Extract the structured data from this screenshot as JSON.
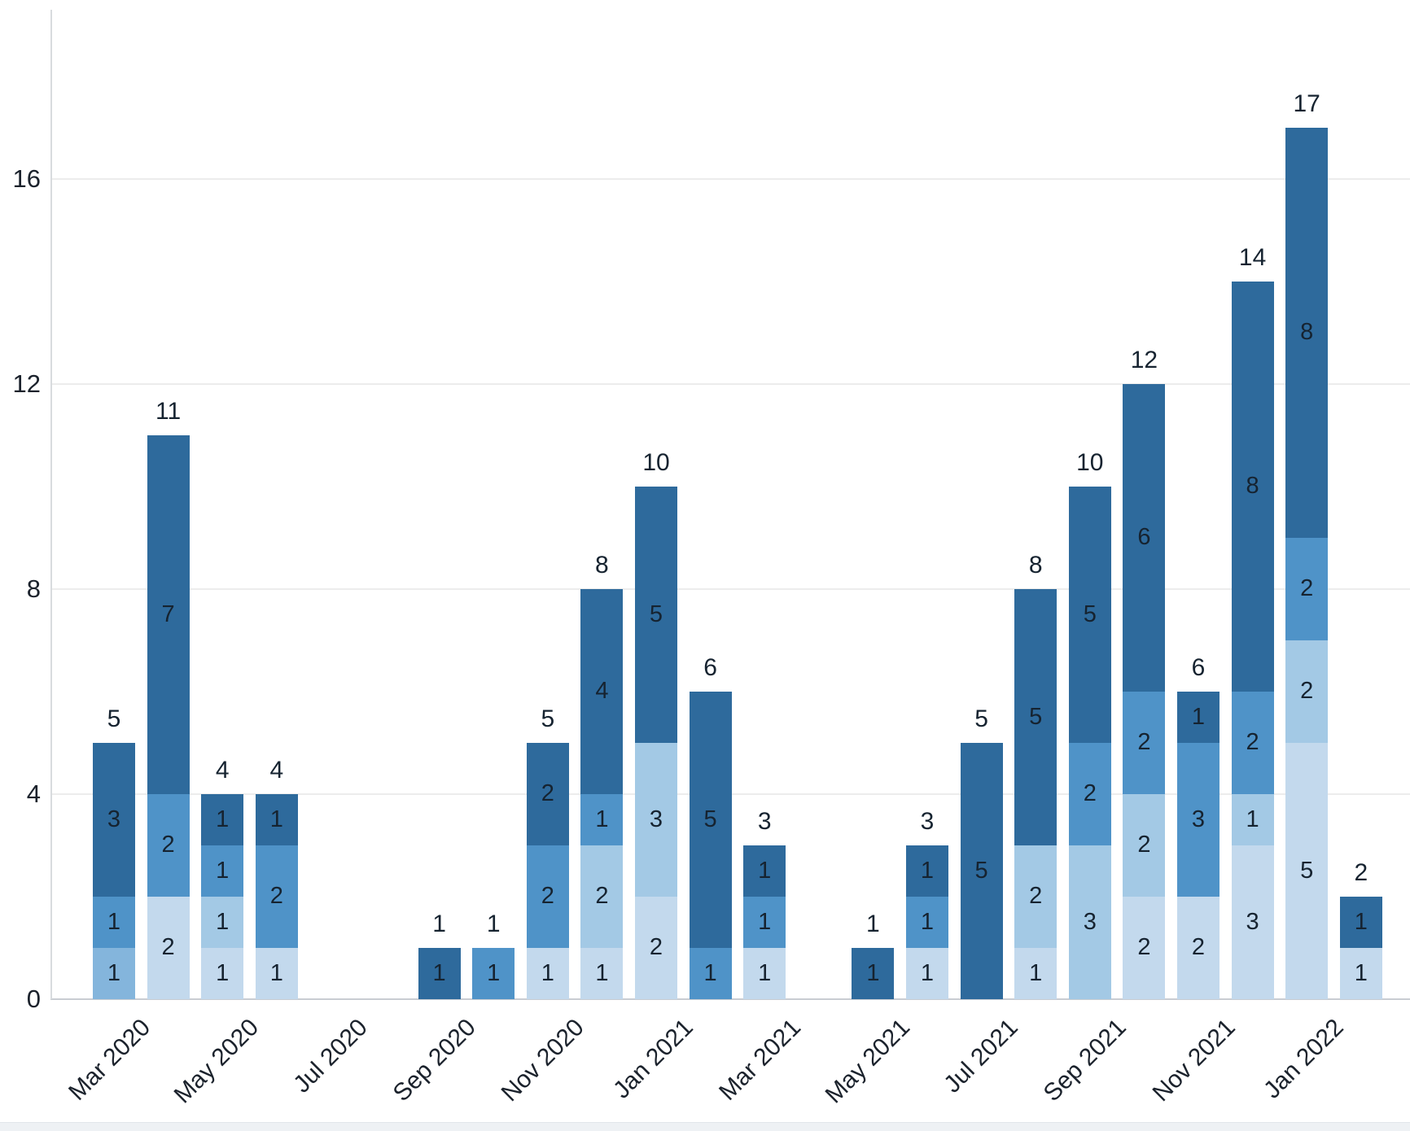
{
  "chart_data": {
    "type": "stacked_bar",
    "title": "",
    "xlabel": "",
    "ylabel": "",
    "grid": "horizontal",
    "legend": "none",
    "y_axis": {
      "ticks": [
        0,
        4,
        8,
        12,
        16
      ],
      "ylim": [
        0,
        19
      ]
    },
    "x_axis": {
      "tick_labels": [
        "Mar 2020",
        "May 2020",
        "Jul 2020",
        "Sep 2020",
        "Nov 2020",
        "Jan 2021",
        "Mar 2021",
        "May 2021",
        "Jul 2021",
        "Sep 2021",
        "Nov 2021",
        "Jan 2022"
      ],
      "tick_slots": [
        0,
        2,
        4,
        6,
        8,
        10,
        12,
        14,
        16,
        18,
        20,
        22
      ]
    },
    "palette": {
      "s1": "#c3d9ed",
      "s2": "#a3c9e5",
      "s3": "#84b5dc",
      "s4": "#4f93c8",
      "s5": "#2e6a9c"
    },
    "bars": [
      {
        "month": "Mar 2020",
        "slot": 0,
        "total": 5,
        "segments": [
          {
            "value": 1,
            "shade": "s3"
          },
          {
            "value": 1,
            "shade": "s4"
          },
          {
            "value": 3,
            "shade": "s5"
          }
        ]
      },
      {
        "month": "Apr 2020",
        "slot": 1,
        "total": 11,
        "segments": [
          {
            "value": 2,
            "shade": "s1"
          },
          {
            "value": 2,
            "shade": "s4"
          },
          {
            "value": 7,
            "shade": "s5"
          }
        ]
      },
      {
        "month": "May 2020",
        "slot": 2,
        "total": 4,
        "segments": [
          {
            "value": 1,
            "shade": "s1"
          },
          {
            "value": 1,
            "shade": "s2"
          },
          {
            "value": 1,
            "shade": "s4"
          },
          {
            "value": 1,
            "shade": "s5"
          }
        ]
      },
      {
        "month": "Jun 2020",
        "slot": 3,
        "total": 4,
        "segments": [
          {
            "value": 1,
            "shade": "s1"
          },
          {
            "value": 2,
            "shade": "s4"
          },
          {
            "value": 1,
            "shade": "s5"
          }
        ]
      },
      {
        "month": "Sep 2020",
        "slot": 6,
        "total": 1,
        "segments": [
          {
            "value": 1,
            "shade": "s5"
          }
        ]
      },
      {
        "month": "Oct 2020",
        "slot": 7,
        "total": 1,
        "segments": [
          {
            "value": 1,
            "shade": "s4"
          }
        ]
      },
      {
        "month": "Nov 2020",
        "slot": 8,
        "total": 5,
        "segments": [
          {
            "value": 1,
            "shade": "s1"
          },
          {
            "value": 2,
            "shade": "s4"
          },
          {
            "value": 2,
            "shade": "s5"
          }
        ]
      },
      {
        "month": "Dec 2020",
        "slot": 9,
        "total": 8,
        "segments": [
          {
            "value": 1,
            "shade": "s1"
          },
          {
            "value": 2,
            "shade": "s2"
          },
          {
            "value": 1,
            "shade": "s4"
          },
          {
            "value": 4,
            "shade": "s5"
          }
        ]
      },
      {
        "month": "Jan 2021",
        "slot": 10,
        "total": 10,
        "segments": [
          {
            "value": 2,
            "shade": "s1"
          },
          {
            "value": 3,
            "shade": "s2"
          },
          {
            "value": 5,
            "shade": "s5"
          }
        ]
      },
      {
        "month": "Feb 2021",
        "slot": 11,
        "total": 6,
        "segments": [
          {
            "value": 1,
            "shade": "s4"
          },
          {
            "value": 5,
            "shade": "s5"
          }
        ]
      },
      {
        "month": "Mar 2021",
        "slot": 12,
        "total": 3,
        "segments": [
          {
            "value": 1,
            "shade": "s1"
          },
          {
            "value": 1,
            "shade": "s4"
          },
          {
            "value": 1,
            "shade": "s5"
          }
        ]
      },
      {
        "month": "May 2021",
        "slot": 14,
        "total": 1,
        "segments": [
          {
            "value": 1,
            "shade": "s5"
          }
        ]
      },
      {
        "month": "Jun 2021",
        "slot": 15,
        "total": 3,
        "segments": [
          {
            "value": 1,
            "shade": "s1"
          },
          {
            "value": 1,
            "shade": "s4"
          },
          {
            "value": 1,
            "shade": "s5"
          }
        ]
      },
      {
        "month": "Jul 2021",
        "slot": 16,
        "total": 5,
        "segments": [
          {
            "value": 5,
            "shade": "s5"
          }
        ]
      },
      {
        "month": "Aug 2021",
        "slot": 17,
        "total": 8,
        "segments": [
          {
            "value": 1,
            "shade": "s1"
          },
          {
            "value": 2,
            "shade": "s2"
          },
          {
            "value": 5,
            "shade": "s5"
          }
        ]
      },
      {
        "month": "Sep 2021",
        "slot": 18,
        "total": 10,
        "segments": [
          {
            "value": 3,
            "shade": "s2"
          },
          {
            "value": 2,
            "shade": "s4"
          },
          {
            "value": 5,
            "shade": "s5"
          }
        ]
      },
      {
        "month": "Oct 2021",
        "slot": 19,
        "total": 12,
        "segments": [
          {
            "value": 2,
            "shade": "s1"
          },
          {
            "value": 2,
            "shade": "s2"
          },
          {
            "value": 2,
            "shade": "s4"
          },
          {
            "value": 6,
            "shade": "s5"
          }
        ]
      },
      {
        "month": "Nov 2021",
        "slot": 20,
        "total": 6,
        "segments": [
          {
            "value": 2,
            "shade": "s1"
          },
          {
            "value": 3,
            "shade": "s4"
          },
          {
            "value": 1,
            "shade": "s5"
          }
        ]
      },
      {
        "month": "Dec 2021",
        "slot": 21,
        "total": 14,
        "segments": [
          {
            "value": 3,
            "shade": "s1"
          },
          {
            "value": 1,
            "shade": "s2"
          },
          {
            "value": 2,
            "shade": "s4"
          },
          {
            "value": 8,
            "shade": "s5"
          }
        ]
      },
      {
        "month": "Jan 2022",
        "slot": 22,
        "total": 17,
        "segments": [
          {
            "value": 5,
            "shade": "s1"
          },
          {
            "value": 2,
            "shade": "s2"
          },
          {
            "value": 2,
            "shade": "s4"
          },
          {
            "value": 8,
            "shade": "s5"
          }
        ]
      },
      {
        "month": "Feb 2022",
        "slot": 23,
        "total": 2,
        "segments": [
          {
            "value": 1,
            "shade": "s1"
          },
          {
            "value": 1,
            "shade": "s5"
          }
        ]
      }
    ]
  }
}
